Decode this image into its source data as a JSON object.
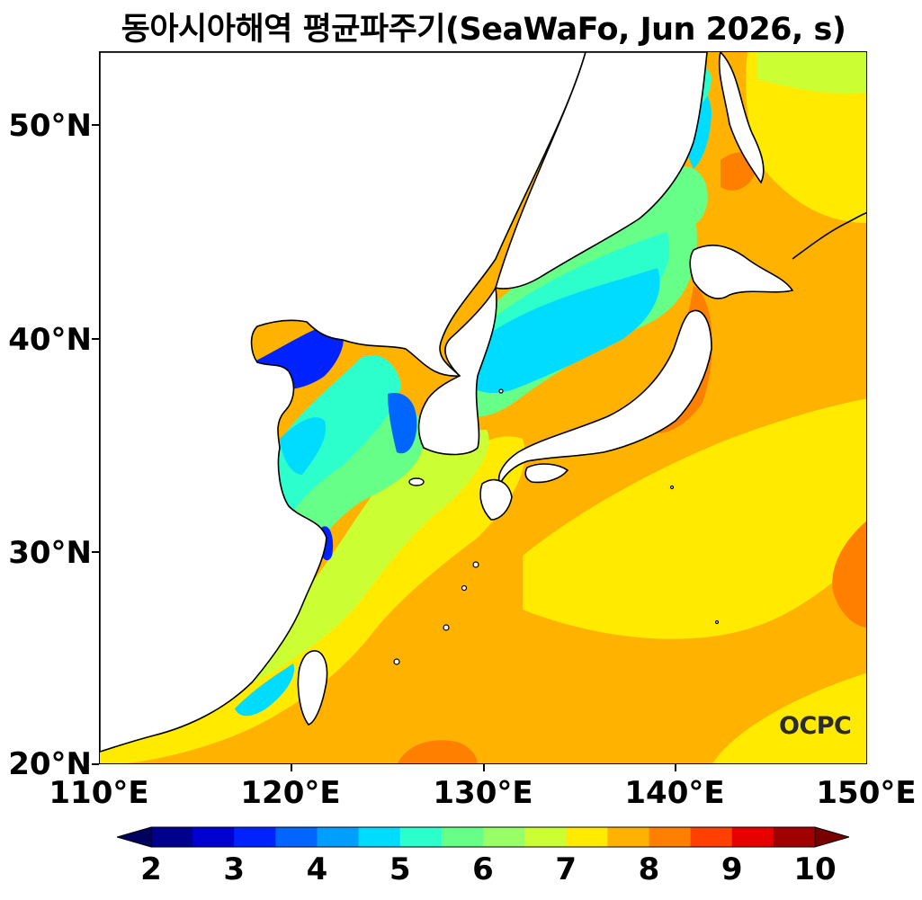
{
  "title": "동아시아해역 평균파주기(SeaWaFo, Jun 2026, s)",
  "logo_text": "OCPC",
  "axes": {
    "x_ticks": [
      "110°E",
      "120°E",
      "130°E",
      "140°E",
      "150°E"
    ],
    "y_ticks": [
      "50°N",
      "40°N",
      "30°N",
      "20°N"
    ]
  },
  "colorbar": {
    "labels": [
      "2",
      "3",
      "4",
      "5",
      "6",
      "7",
      "8",
      "9",
      "10"
    ],
    "colors": [
      "#00008f",
      "#0000d0",
      "#0022ff",
      "#0066ff",
      "#009fff",
      "#00dcff",
      "#2cffcc",
      "#66ff88",
      "#99ff66",
      "#ccff33",
      "#ffea00",
      "#ffb300",
      "#ff7f00",
      "#ff4000",
      "#e60000",
      "#a00000"
    ],
    "under_color": "#00005f",
    "over_color": "#7a0000"
  },
  "map_colors": {
    "land": "#ffffff",
    "coast": "#000000"
  }
}
